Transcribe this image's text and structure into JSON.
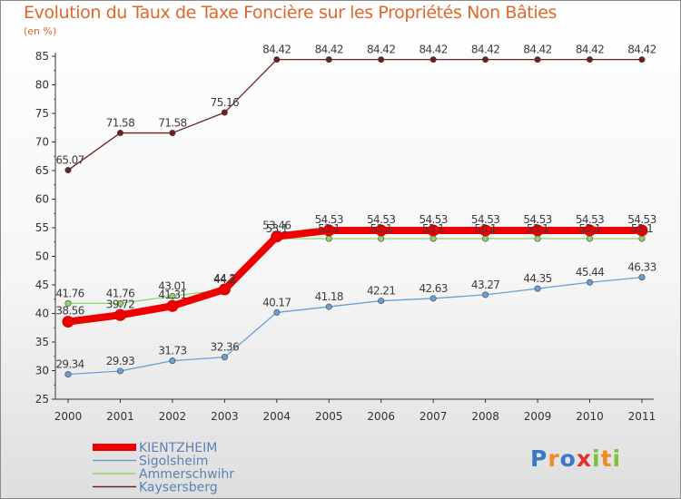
{
  "chart_data": {
    "type": "line",
    "title": "Evolution du Taux de Taxe Foncière sur les Propriétés Non Bâties",
    "unit_label": "(en %)",
    "x": [
      "2000",
      "2001",
      "2002",
      "2003",
      "2004",
      "2005",
      "2006",
      "2007",
      "2008",
      "2009",
      "2010",
      "2011"
    ],
    "ylim": [
      25,
      85
    ],
    "y_ticks": [
      "25",
      "30",
      "35",
      "40",
      "45",
      "50",
      "55",
      "60",
      "65",
      "70",
      "75",
      "80",
      "85"
    ],
    "grid": false,
    "legend_position": "bottom-left",
    "series": [
      {
        "name": "Kaysersberg",
        "color": "#6e1f1f",
        "values": [
          65.07,
          71.58,
          71.58,
          75.16,
          84.42,
          84.42,
          84.42,
          84.42,
          84.42,
          84.42,
          84.42,
          84.42
        ],
        "labels": [
          "65.07",
          "71.58",
          "71.58",
          "75.16",
          "84.42",
          "84.42",
          "84.42",
          "84.42",
          "84.42",
          "84.42",
          "84.42",
          "84.42"
        ]
      },
      {
        "name": "Ammerschwihr",
        "color": "#8fd46a",
        "values": [
          41.76,
          41.76,
          43.01,
          44.2,
          53.1,
          53.1,
          53.1,
          53.1,
          53.1,
          53.1,
          53.1,
          53.1
        ],
        "labels": [
          "41.76",
          "41.76",
          "43.01",
          "44.2",
          "53.1",
          "53.1",
          "53.1",
          "53.1",
          "53.1",
          "53.1",
          "53.1",
          "53.1"
        ]
      },
      {
        "name": "Sigolsheim",
        "color": "#6a9fd6",
        "values": [
          29.34,
          29.93,
          31.73,
          32.36,
          40.17,
          41.18,
          42.21,
          42.63,
          43.27,
          44.35,
          45.44,
          46.33
        ],
        "labels": [
          "29.34",
          "29.93",
          "31.73",
          "32.36",
          "40.17",
          "41.18",
          "42.21",
          "42.63",
          "43.27",
          "44.35",
          "45.44",
          "46.33"
        ]
      },
      {
        "name": "KIENTZHEIM",
        "color": "#ee0000",
        "values": [
          38.56,
          39.72,
          41.31,
          44.2,
          53.46,
          54.53,
          54.53,
          54.53,
          54.53,
          54.53,
          54.53,
          54.53
        ],
        "labels": [
          "38.56",
          "39.72",
          "41.31",
          "44.2",
          "53.46",
          "54.53",
          "54.53",
          "54.53",
          "54.53",
          "54.53",
          "54.53",
          "54.53"
        ]
      }
    ],
    "legend": [
      "KIENTZHEIM",
      "Sigolsheim",
      "Ammerschwihr",
      "Kaysersberg"
    ]
  },
  "logo": {
    "letters": [
      "P",
      "r",
      "o",
      "x",
      "i",
      "t",
      "i"
    ],
    "colors": [
      "#3a78c8",
      "#f08a22",
      "#3a78c8",
      "#e03030",
      "#7fbf3a",
      "#f08a22",
      "#7fbf3a"
    ]
  }
}
